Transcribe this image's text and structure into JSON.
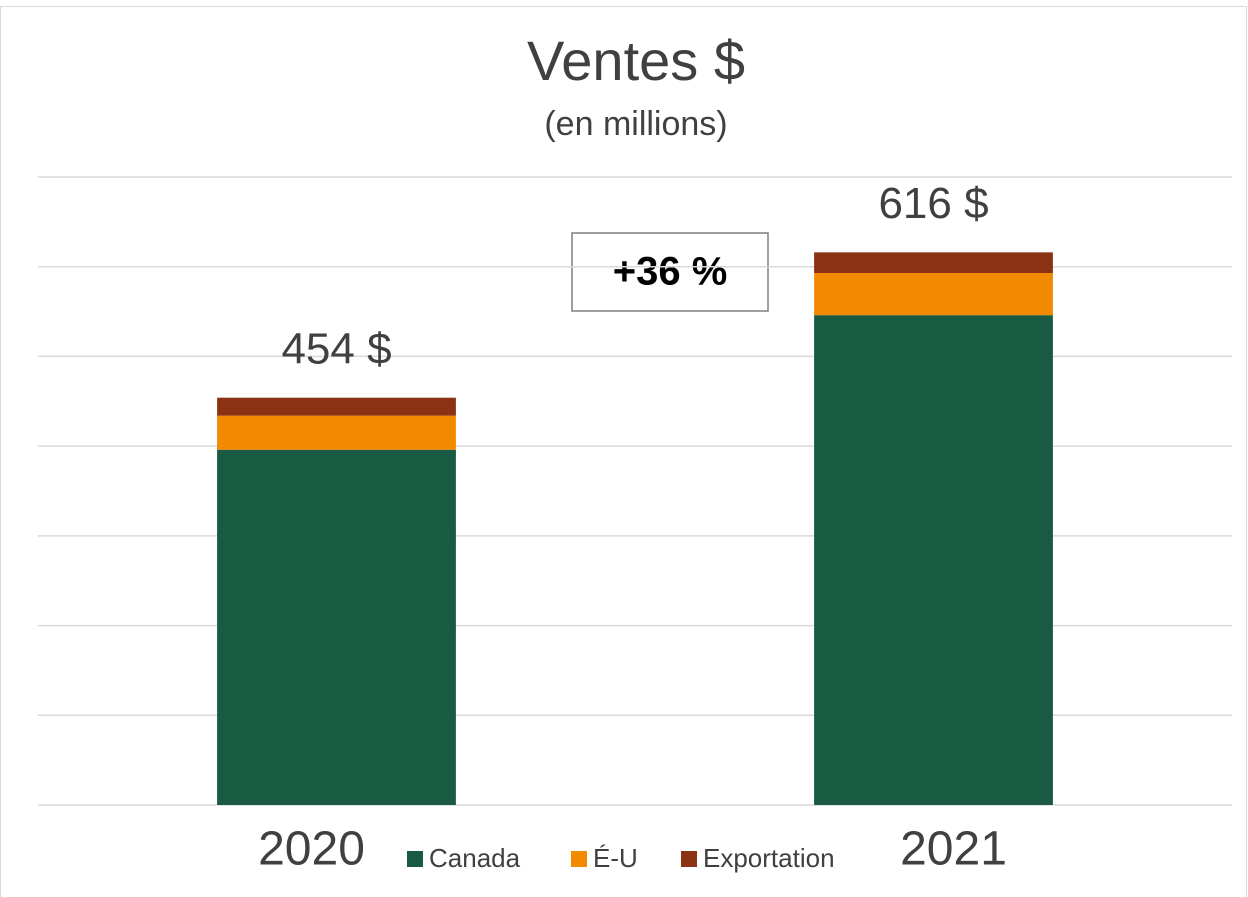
{
  "chart_data": {
    "type": "stacked_bar",
    "title": "Ventes $",
    "subtitle": "(en millions)",
    "categories": [
      "2020",
      "2021"
    ],
    "series": [
      {
        "name": "Canada",
        "color": "#185a42",
        "values": [
          396,
          546
        ]
      },
      {
        "name": "É-U",
        "color": "#f28a00",
        "values": [
          38,
          47
        ]
      },
      {
        "name": "Exportation",
        "color": "#8b3214",
        "values": [
          20,
          23
        ]
      }
    ],
    "totals": [
      454,
      616
    ],
    "total_labels": [
      "454 $",
      "616 $"
    ],
    "annotation": "+36 %",
    "ylim": [
      0,
      700
    ],
    "yticks": [
      0,
      100,
      200,
      300,
      400,
      500,
      600,
      700
    ],
    "grid": true
  }
}
